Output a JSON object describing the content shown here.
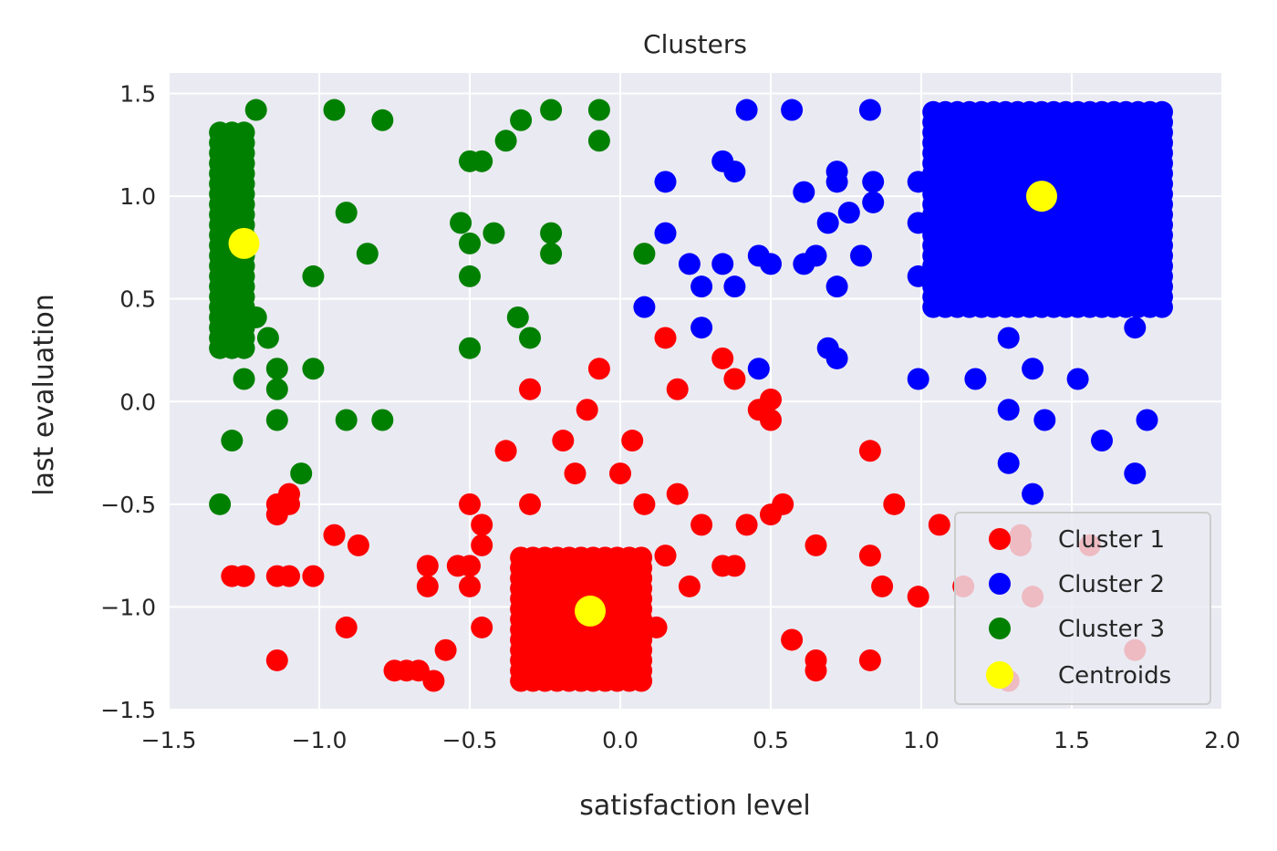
{
  "chart_data": {
    "type": "scatter",
    "title": "Clusters",
    "xlabel": "satisfaction level",
    "ylabel": "last evaluation",
    "xlim": [
      -1.5,
      2.0
    ],
    "ylim": [
      -1.5,
      1.6
    ],
    "xticks": [
      -1.5,
      -1.0,
      -0.5,
      0.0,
      0.5,
      1.0,
      1.5,
      2.0
    ],
    "xtick_labels": [
      "−1.5",
      "−1.0",
      "−0.5",
      "0.0",
      "0.5",
      "1.0",
      "1.5",
      "2.0"
    ],
    "yticks": [
      -1.5,
      -1.0,
      -0.5,
      0.0,
      0.5,
      1.0,
      1.5
    ],
    "ytick_labels": [
      "−1.5",
      "−1.0",
      "−0.5",
      "0.0",
      "0.5",
      "1.0",
      "1.5"
    ],
    "grid": true,
    "legend_position": "lower-right",
    "background_color": "#eaeaf2",
    "series": [
      {
        "name": "Cluster 1",
        "color": "#ff0000",
        "points": [
          [
            -1.29,
            -0.85
          ],
          [
            -1.25,
            -0.85
          ],
          [
            -1.14,
            -0.85
          ],
          [
            -1.1,
            -0.85
          ],
          [
            -1.02,
            -0.85
          ],
          [
            -1.14,
            -0.5
          ],
          [
            -1.1,
            -0.5
          ],
          [
            -1.14,
            -0.55
          ],
          [
            -1.1,
            -0.45
          ],
          [
            -1.14,
            -1.26
          ],
          [
            -0.95,
            -0.65
          ],
          [
            -0.87,
            -0.7
          ],
          [
            -0.91,
            -1.1
          ],
          [
            -0.75,
            -1.31
          ],
          [
            -0.71,
            -1.31
          ],
          [
            -0.67,
            -1.31
          ],
          [
            -0.62,
            -1.36
          ],
          [
            -0.58,
            -1.21
          ],
          [
            -0.64,
            -0.8
          ],
          [
            -0.64,
            -0.9
          ],
          [
            -0.54,
            -0.8
          ],
          [
            -0.5,
            -0.8
          ],
          [
            -0.5,
            -0.9
          ],
          [
            -0.5,
            -0.5
          ],
          [
            -0.46,
            -0.6
          ],
          [
            -0.46,
            -0.7
          ],
          [
            -0.46,
            -1.1
          ],
          [
            -0.38,
            -0.24
          ],
          [
            -0.3,
            -0.5
          ],
          [
            -0.3,
            0.06
          ],
          [
            -0.19,
            -0.19
          ],
          [
            -0.15,
            -0.35
          ],
          [
            -0.11,
            -0.04
          ],
          [
            -0.07,
            0.16
          ],
          [
            0.0,
            -0.35
          ],
          [
            0.04,
            -0.19
          ],
          [
            0.08,
            -0.5
          ],
          [
            0.12,
            -1.1
          ],
          [
            0.15,
            0.31
          ],
          [
            0.15,
            -0.75
          ],
          [
            0.19,
            0.06
          ],
          [
            0.19,
            -0.45
          ],
          [
            0.23,
            -0.9
          ],
          [
            0.27,
            -0.6
          ],
          [
            0.34,
            0.21
          ],
          [
            0.34,
            -0.8
          ],
          [
            0.38,
            -0.8
          ],
          [
            0.38,
            0.11
          ],
          [
            0.42,
            -0.6
          ],
          [
            0.46,
            -0.04
          ],
          [
            0.5,
            0.01
          ],
          [
            0.5,
            -0.09
          ],
          [
            0.5,
            -0.55
          ],
          [
            0.54,
            -0.5
          ],
          [
            0.57,
            -1.16
          ],
          [
            0.65,
            -0.7
          ],
          [
            0.65,
            -1.26
          ],
          [
            0.65,
            -1.31
          ],
          [
            0.83,
            -0.24
          ],
          [
            0.83,
            -0.75
          ],
          [
            0.83,
            -1.26
          ],
          [
            0.87,
            -0.9
          ],
          [
            0.91,
            -0.5
          ],
          [
            0.99,
            -0.95
          ],
          [
            1.06,
            -0.6
          ],
          [
            1.14,
            -0.9
          ],
          [
            1.33,
            -0.65
          ],
          [
            1.33,
            -0.7
          ],
          [
            1.37,
            -0.95
          ],
          [
            1.29,
            -1.36
          ],
          [
            1.56,
            -0.7
          ],
          [
            1.71,
            -1.21
          ]
        ],
        "dense_region": {
          "x_range": [
            -0.33,
            0.08
          ],
          "y_range": [
            -1.36,
            -0.75
          ]
        }
      },
      {
        "name": "Cluster 2",
        "color": "#0000ff",
        "points": [
          [
            0.42,
            1.42
          ],
          [
            0.57,
            1.42
          ],
          [
            0.83,
            1.42
          ],
          [
            0.34,
            1.17
          ],
          [
            0.38,
            1.12
          ],
          [
            0.15,
            1.07
          ],
          [
            0.15,
            0.82
          ],
          [
            0.08,
            0.46
          ],
          [
            0.23,
            0.67
          ],
          [
            0.27,
            0.56
          ],
          [
            0.27,
            0.36
          ],
          [
            0.34,
            0.67
          ],
          [
            0.38,
            0.56
          ],
          [
            0.46,
            0.71
          ],
          [
            0.5,
            0.67
          ],
          [
            0.46,
            0.16
          ],
          [
            0.61,
            1.02
          ],
          [
            0.61,
            0.67
          ],
          [
            0.65,
            0.71
          ],
          [
            0.69,
            0.87
          ],
          [
            0.72,
            1.12
          ],
          [
            0.72,
            1.07
          ],
          [
            0.76,
            0.92
          ],
          [
            0.8,
            0.71
          ],
          [
            0.72,
            0.56
          ],
          [
            0.84,
            1.07
          ],
          [
            0.84,
            0.97
          ],
          [
            0.69,
            0.26
          ],
          [
            0.72,
            0.21
          ],
          [
            0.99,
            1.07
          ],
          [
            0.99,
            0.87
          ],
          [
            0.99,
            0.61
          ],
          [
            0.99,
            0.11
          ],
          [
            1.18,
            0.11
          ],
          [
            1.29,
            0.31
          ],
          [
            1.29,
            -0.04
          ],
          [
            1.29,
            -0.3
          ],
          [
            1.37,
            0.16
          ],
          [
            1.41,
            -0.09
          ],
          [
            1.37,
            -0.45
          ],
          [
            1.52,
            0.11
          ],
          [
            1.6,
            -0.19
          ],
          [
            1.71,
            0.36
          ],
          [
            1.75,
            -0.09
          ],
          [
            1.71,
            -0.35
          ]
        ],
        "dense_region": {
          "x_range": [
            1.04,
            1.82
          ],
          "y_range": [
            0.46,
            1.42
          ]
        }
      },
      {
        "name": "Cluster 3",
        "color": "#008000",
        "points": [
          [
            -1.21,
            1.42
          ],
          [
            -0.95,
            1.42
          ],
          [
            -0.79,
            1.37
          ],
          [
            -0.33,
            1.37
          ],
          [
            -0.38,
            1.27
          ],
          [
            -0.23,
            1.42
          ],
          [
            -0.07,
            1.42
          ],
          [
            -0.07,
            1.27
          ],
          [
            -0.5,
            1.17
          ],
          [
            -0.46,
            1.17
          ],
          [
            -0.91,
            0.92
          ],
          [
            -0.53,
            0.87
          ],
          [
            -0.5,
            0.77
          ],
          [
            -0.42,
            0.82
          ],
          [
            -0.23,
            0.82
          ],
          [
            -0.23,
            0.72
          ],
          [
            -0.84,
            0.72
          ],
          [
            0.08,
            0.72
          ],
          [
            -1.02,
            0.61
          ],
          [
            -0.5,
            0.61
          ],
          [
            -1.21,
            0.41
          ],
          [
            -1.17,
            0.31
          ],
          [
            -0.34,
            0.41
          ],
          [
            -0.3,
            0.31
          ],
          [
            -0.5,
            0.26
          ],
          [
            -1.25,
            0.11
          ],
          [
            -1.14,
            0.16
          ],
          [
            -1.14,
            0.06
          ],
          [
            -1.02,
            0.16
          ],
          [
            -1.14,
            -0.09
          ],
          [
            -0.91,
            -0.09
          ],
          [
            -0.79,
            -0.09
          ],
          [
            -1.29,
            -0.19
          ],
          [
            -1.06,
            -0.35
          ],
          [
            -1.33,
            -0.5
          ]
        ],
        "dense_region": {
          "x_range": [
            -1.33,
            -1.25
          ],
          "y_range": [
            0.26,
            1.32
          ]
        }
      }
    ],
    "centroids": {
      "name": "Centroids",
      "color": "#ffff00",
      "points": [
        [
          -1.25,
          0.77
        ],
        [
          1.4,
          1.0
        ],
        [
          -0.1,
          -1.02
        ]
      ]
    }
  }
}
